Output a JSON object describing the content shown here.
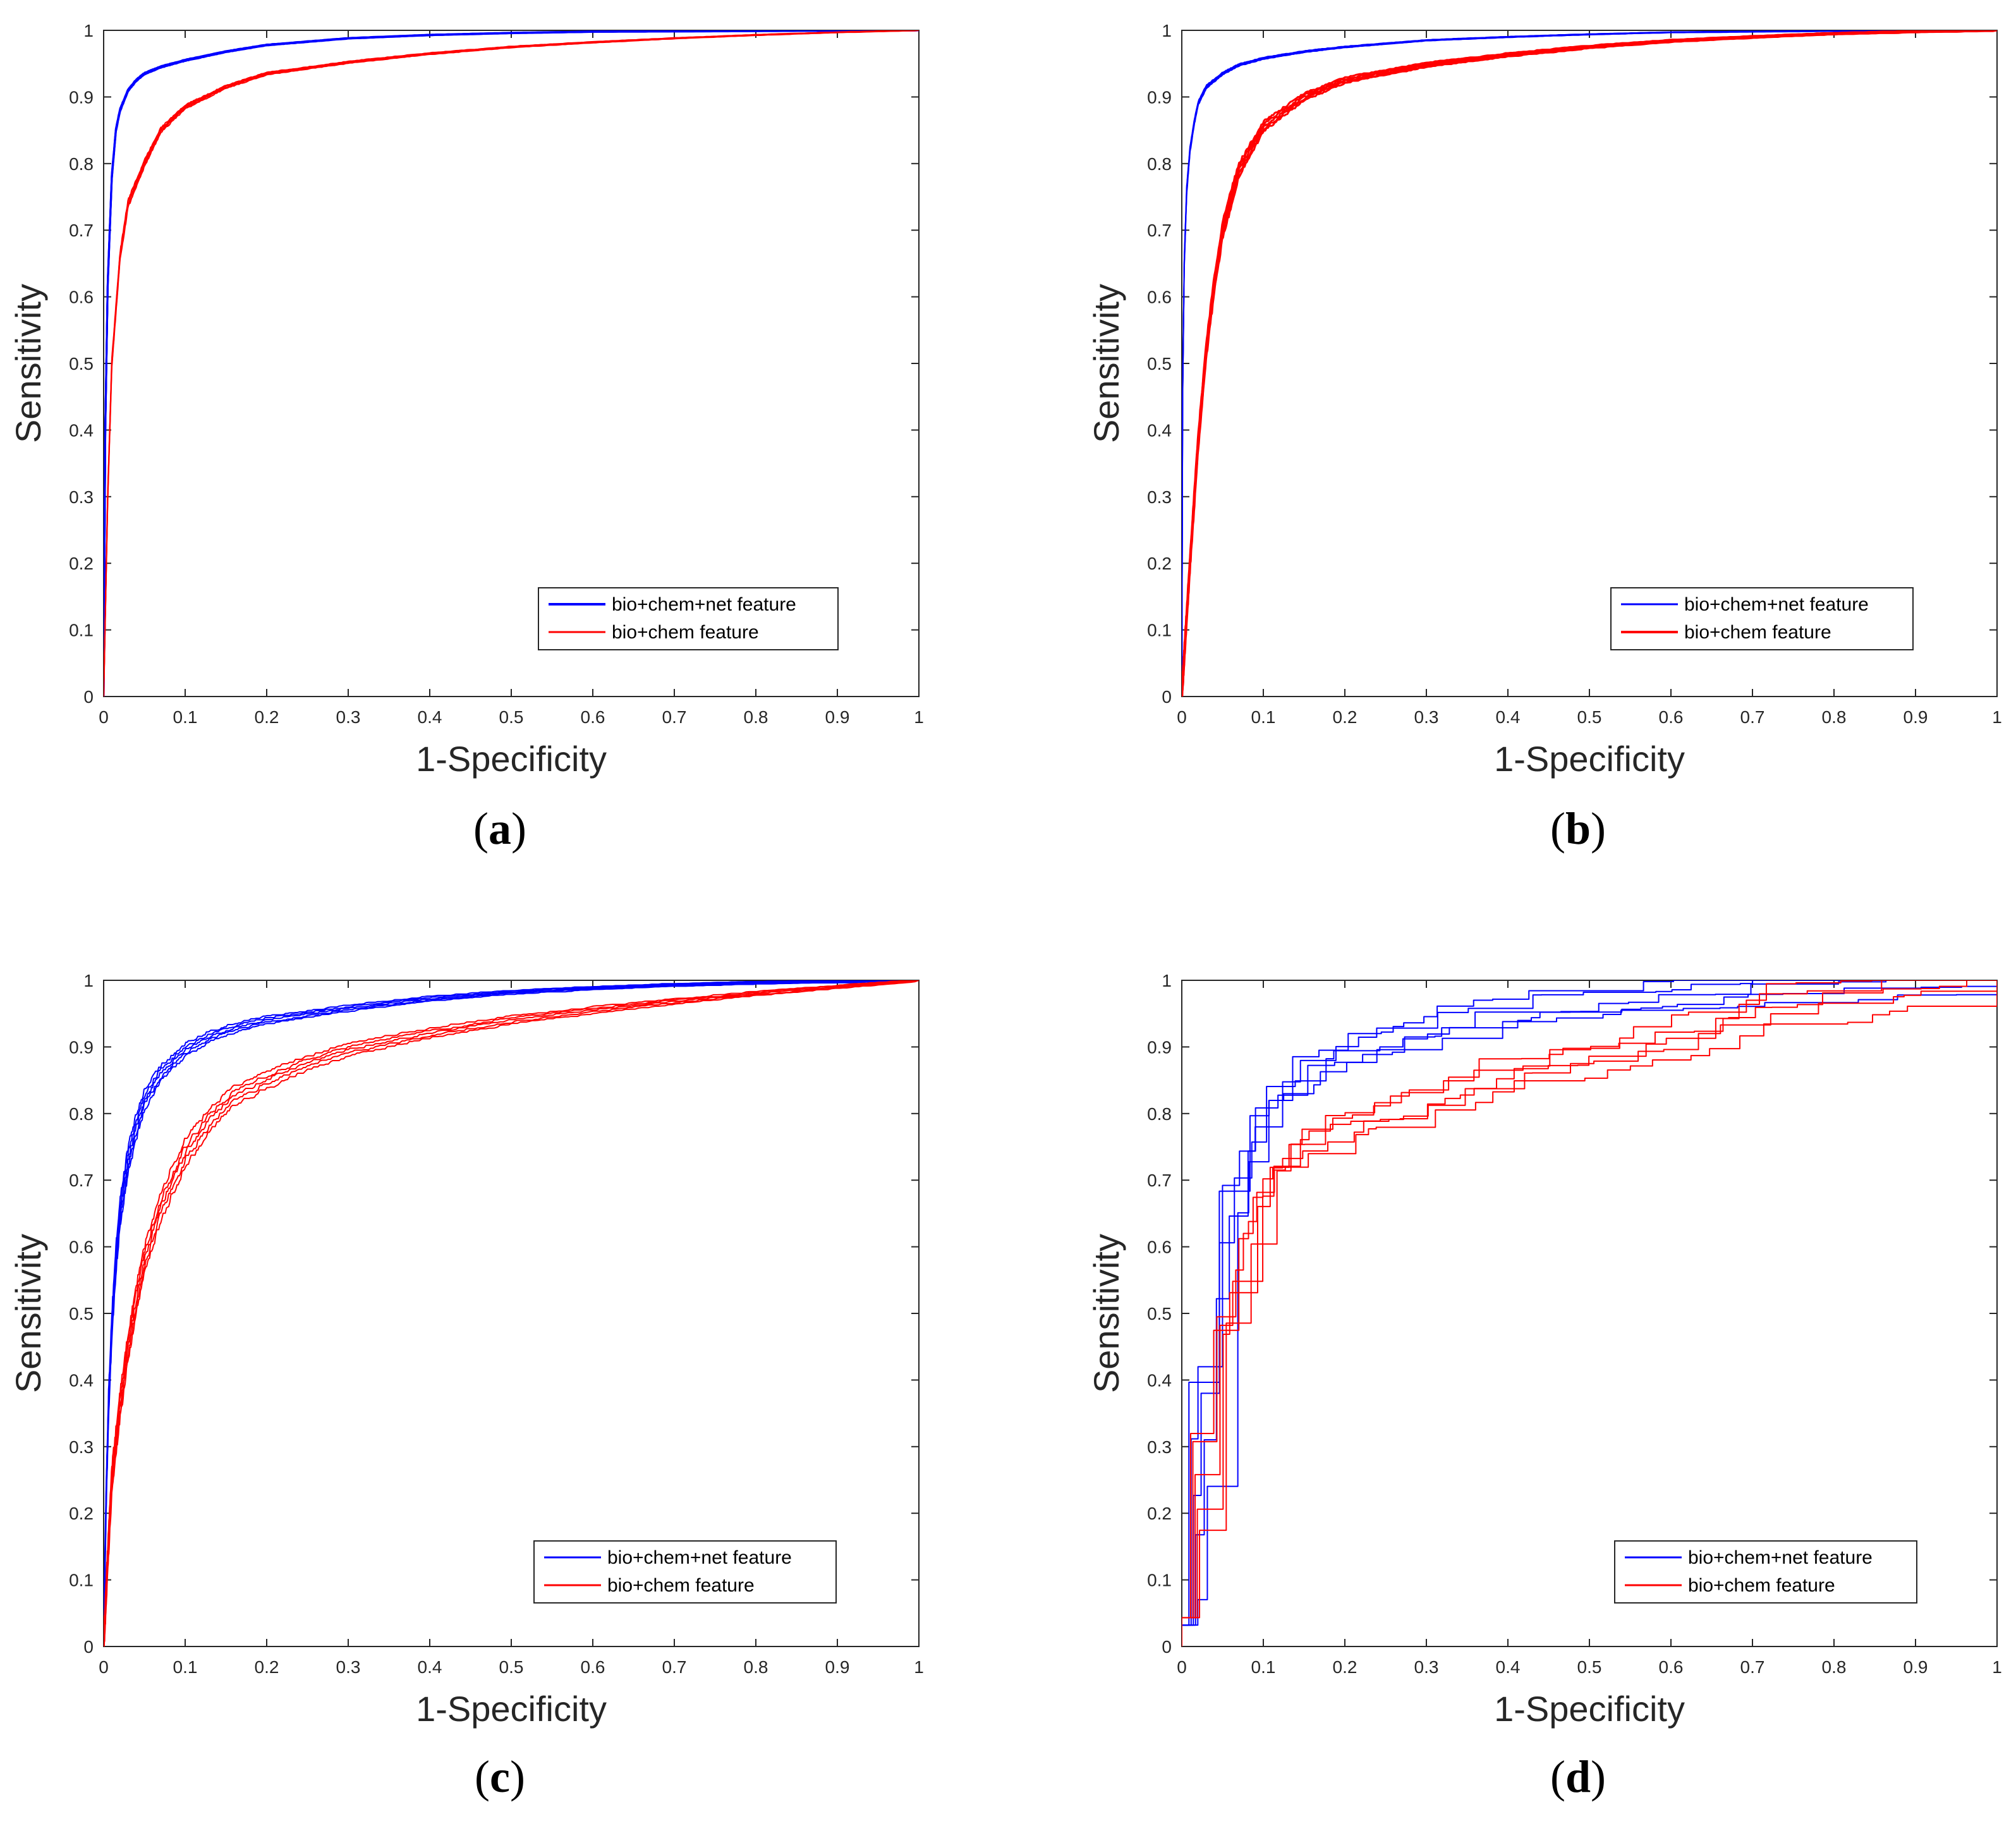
{
  "figure": {
    "colors": {
      "blue": "#0000ff",
      "red": "#ff0000",
      "axis": "#262626"
    }
  },
  "chart_data": [
    {
      "type": "line",
      "panel": "(a)",
      "caption_letter": "a",
      "xlabel": "1-Specificity",
      "ylabel": "Sensitivity",
      "xlim": [
        0,
        1
      ],
      "ylim": [
        0,
        1
      ],
      "xticks": [
        "0",
        "0.1",
        "0.2",
        "0.3",
        "0.4",
        "0.5",
        "0.6",
        "0.7",
        "0.8",
        "0.9",
        "1"
      ],
      "yticks": [
        "0",
        "0.1",
        "0.2",
        "0.3",
        "0.4",
        "0.5",
        "0.6",
        "0.7",
        "0.8",
        "0.9",
        "1"
      ],
      "legend_position": "lower-right",
      "series": [
        {
          "name": "bio+chem+net feature",
          "color": "#0000ff",
          "line_width": 3,
          "runs": 5,
          "spread": 0.004,
          "x": [
            0,
            0.002,
            0.005,
            0.01,
            0.015,
            0.02,
            0.03,
            0.04,
            0.05,
            0.07,
            0.1,
            0.15,
            0.2,
            0.3,
            0.4,
            0.5,
            0.6,
            0.8,
            1.0
          ],
          "y": [
            0,
            0.4,
            0.62,
            0.78,
            0.85,
            0.88,
            0.91,
            0.925,
            0.935,
            0.945,
            0.955,
            0.968,
            0.978,
            0.988,
            0.993,
            0.996,
            0.998,
            0.999,
            1.0
          ]
        },
        {
          "name": "bio+chem feature",
          "color": "#ff0000",
          "line_width": 2,
          "runs": 5,
          "spread": 0.006,
          "x": [
            0,
            0.005,
            0.01,
            0.02,
            0.03,
            0.05,
            0.07,
            0.1,
            0.15,
            0.2,
            0.3,
            0.4,
            0.5,
            0.6,
            0.7,
            0.8,
            0.9,
            1.0
          ],
          "y": [
            0,
            0.3,
            0.5,
            0.66,
            0.74,
            0.8,
            0.85,
            0.885,
            0.915,
            0.935,
            0.952,
            0.965,
            0.975,
            0.982,
            0.988,
            0.993,
            0.997,
            1.0
          ]
        }
      ]
    },
    {
      "type": "line",
      "panel": "(b)",
      "caption_letter": "b",
      "xlabel": "1-Specificity",
      "ylabel": "Sensitivity",
      "xlim": [
        0,
        1
      ],
      "ylim": [
        0,
        1
      ],
      "xticks": [
        "0",
        "0.1",
        "0.2",
        "0.3",
        "0.4",
        "0.5",
        "0.6",
        "0.7",
        "0.8",
        "0.9",
        "1"
      ],
      "yticks": [
        "0",
        "0.1",
        "0.2",
        "0.3",
        "0.4",
        "0.5",
        "0.6",
        "0.7",
        "0.8",
        "0.9",
        "1"
      ],
      "legend_position": "lower-right",
      "series": [
        {
          "name": "bio+chem+net feature",
          "color": "#0000ff",
          "line_width": 2,
          "runs": 5,
          "spread": 0.006,
          "x": [
            0,
            0.001,
            0.003,
            0.006,
            0.01,
            0.015,
            0.02,
            0.03,
            0.05,
            0.07,
            0.1,
            0.15,
            0.2,
            0.3,
            0.4,
            0.5,
            0.6,
            0.8,
            1.0
          ],
          "y": [
            0,
            0.45,
            0.65,
            0.76,
            0.82,
            0.86,
            0.89,
            0.915,
            0.935,
            0.948,
            0.958,
            0.968,
            0.975,
            0.985,
            0.99,
            0.994,
            0.997,
            0.999,
            1.0
          ]
        },
        {
          "name": "bio+chem feature",
          "color": "#ff0000",
          "line_width": 3,
          "runs": 5,
          "spread": 0.012,
          "x": [
            0,
            0.005,
            0.01,
            0.02,
            0.03,
            0.04,
            0.05,
            0.07,
            0.1,
            0.15,
            0.2,
            0.3,
            0.4,
            0.5,
            0.6,
            0.7,
            0.8,
            0.9,
            1.0
          ],
          "y": [
            0,
            0.1,
            0.2,
            0.38,
            0.52,
            0.62,
            0.7,
            0.79,
            0.855,
            0.9,
            0.925,
            0.948,
            0.963,
            0.975,
            0.984,
            0.99,
            0.995,
            0.998,
            1.0
          ]
        }
      ]
    },
    {
      "type": "line",
      "panel": "(c)",
      "caption_letter": "c",
      "xlabel": "1-Specificity",
      "ylabel": "Sensitivity",
      "xlim": [
        0,
        1
      ],
      "ylim": [
        0,
        1
      ],
      "xticks": [
        "0",
        "0.1",
        "0.2",
        "0.3",
        "0.4",
        "0.5",
        "0.6",
        "0.7",
        "0.8",
        "0.9",
        "1"
      ],
      "yticks": [
        "0",
        "0.1",
        "0.2",
        "0.3",
        "0.4",
        "0.5",
        "0.6",
        "0.7",
        "0.8",
        "0.9",
        "1"
      ],
      "legend_position": "lower-right",
      "series": [
        {
          "name": "bio+chem+net feature",
          "color": "#0000ff",
          "line_width": 2,
          "runs": 5,
          "spread": 0.02,
          "x": [
            0,
            0.003,
            0.006,
            0.01,
            0.015,
            0.02,
            0.03,
            0.04,
            0.05,
            0.07,
            0.1,
            0.13,
            0.16,
            0.2,
            0.3,
            0.4,
            0.5,
            0.6,
            0.7,
            0.8,
            0.9,
            1.0
          ],
          "y": [
            0,
            0.22,
            0.36,
            0.48,
            0.58,
            0.65,
            0.73,
            0.78,
            0.82,
            0.86,
            0.895,
            0.915,
            0.928,
            0.94,
            0.958,
            0.972,
            0.982,
            0.988,
            0.993,
            0.996,
            0.998,
            1.0
          ]
        },
        {
          "name": "bio+chem feature",
          "color": "#ff0000",
          "line_width": 2,
          "runs": 5,
          "spread": 0.02,
          "x": [
            0,
            0.005,
            0.01,
            0.02,
            0.03,
            0.04,
            0.05,
            0.07,
            0.1,
            0.13,
            0.16,
            0.2,
            0.25,
            0.3,
            0.4,
            0.5,
            0.6,
            0.7,
            0.8,
            0.9,
            1.0
          ],
          "y": [
            0,
            0.13,
            0.25,
            0.36,
            0.45,
            0.52,
            0.58,
            0.66,
            0.74,
            0.79,
            0.825,
            0.85,
            0.875,
            0.895,
            0.92,
            0.94,
            0.955,
            0.968,
            0.98,
            0.99,
            1.0
          ]
        }
      ]
    },
    {
      "type": "line",
      "panel": "(d)",
      "caption_letter": "d",
      "xlabel": "1-Specificity",
      "ylabel": "Sensitivity",
      "xlim": [
        0,
        1
      ],
      "ylim": [
        0,
        1
      ],
      "xticks": [
        "0",
        "0.1",
        "0.2",
        "0.3",
        "0.4",
        "0.5",
        "0.6",
        "0.7",
        "0.8",
        "0.9",
        "1"
      ],
      "yticks": [
        "0",
        "0.1",
        "0.2",
        "0.3",
        "0.4",
        "0.5",
        "0.6",
        "0.7",
        "0.8",
        "0.9",
        "1"
      ],
      "legend_position": "lower-right",
      "step": true,
      "series": [
        {
          "name": "bio+chem+net feature",
          "color": "#0000ff",
          "line_width": 2,
          "runs": 5,
          "spread": 0.025,
          "xshift": 0.018,
          "x": [
            0,
            0.01,
            0.02,
            0.03,
            0.04,
            0.05,
            0.06,
            0.08,
            0.1,
            0.12,
            0.15,
            0.2,
            0.25,
            0.3,
            0.35,
            0.4,
            0.5,
            0.6,
            0.7,
            0.8,
            0.9,
            1.0
          ],
          "y": [
            0.02,
            0.18,
            0.32,
            0.46,
            0.58,
            0.63,
            0.7,
            0.75,
            0.82,
            0.85,
            0.87,
            0.89,
            0.91,
            0.925,
            0.935,
            0.95,
            0.96,
            0.97,
            0.98,
            0.985,
            0.99,
            1.0
          ]
        },
        {
          "name": "bio+chem feature",
          "color": "#ff0000",
          "line_width": 2,
          "runs": 5,
          "spread": 0.03,
          "xshift": 0.015,
          "x": [
            0,
            0.01,
            0.02,
            0.03,
            0.05,
            0.07,
            0.09,
            0.11,
            0.15,
            0.2,
            0.25,
            0.3,
            0.35,
            0.4,
            0.45,
            0.5,
            0.55,
            0.6,
            0.65,
            0.7,
            0.8,
            0.9,
            1.0
          ],
          "y": [
            0.03,
            0.18,
            0.3,
            0.4,
            0.5,
            0.58,
            0.66,
            0.72,
            0.76,
            0.78,
            0.8,
            0.82,
            0.84,
            0.86,
            0.87,
            0.88,
            0.89,
            0.91,
            0.93,
            0.95,
            0.97,
            0.985,
            1.0
          ]
        }
      ]
    }
  ]
}
